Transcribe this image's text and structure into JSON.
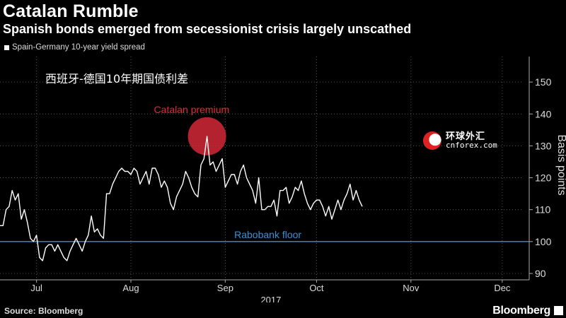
{
  "header": {
    "title": "Catalan Rumble",
    "subtitle": "Spanish bonds emerged from secessionist crisis largely unscathed"
  },
  "legend": {
    "label": "Spain-Germany 10-year yield spread"
  },
  "overlay_text": "西班牙-德国10年期国债利差",
  "watermark": {
    "cn": "环球外汇",
    "en": "cnforex.com"
  },
  "footer": {
    "source": "Source: Bloomberg",
    "brand": "Bloomberg"
  },
  "colors": {
    "background": "#000000",
    "line": "#ffffff",
    "floor": "#3d8fd6",
    "annotation": "#e02b3a"
  },
  "chart_data": {
    "type": "line",
    "title": "Catalan Rumble",
    "xlabel": "2017",
    "ylabel": "Basis points",
    "ylim": [
      88,
      158
    ],
    "yticks": [
      90,
      100,
      110,
      120,
      130,
      140,
      150
    ],
    "xticks": [
      {
        "label": "Jul",
        "x": 12
      },
      {
        "label": "Aug",
        "x": 43
      },
      {
        "label": "Sep",
        "x": 74
      },
      {
        "label": "Oct",
        "x": 104
      },
      {
        "label": "Nov",
        "x": 135
      },
      {
        "label": "Dec",
        "x": 165
      }
    ],
    "x_range": [
      0,
      172
    ],
    "series": [
      {
        "name": "Spain-Germany 10-year yield spread",
        "points": [
          [
            0,
            105
          ],
          [
            1,
            105
          ],
          [
            2,
            110
          ],
          [
            3,
            111
          ],
          [
            4,
            116
          ],
          [
            5,
            113
          ],
          [
            6,
            115
          ],
          [
            7,
            107
          ],
          [
            8,
            110
          ],
          [
            9,
            106
          ],
          [
            10,
            101
          ],
          [
            11,
            100
          ],
          [
            12,
            102
          ],
          [
            13,
            95
          ],
          [
            14,
            94
          ],
          [
            15,
            98
          ],
          [
            16,
            99
          ],
          [
            17,
            99
          ],
          [
            18,
            97
          ],
          [
            19,
            99
          ],
          [
            20,
            97
          ],
          [
            21,
            95
          ],
          [
            22,
            94
          ],
          [
            23,
            97
          ],
          [
            24,
            99
          ],
          [
            25,
            101
          ],
          [
            26,
            99
          ],
          [
            27,
            97
          ],
          [
            28,
            100
          ],
          [
            29,
            102
          ],
          [
            30,
            108
          ],
          [
            31,
            103
          ],
          [
            32,
            104
          ],
          [
            33,
            102
          ],
          [
            34,
            101
          ],
          [
            35,
            115
          ],
          [
            36,
            115
          ],
          [
            37,
            118
          ],
          [
            38,
            120
          ],
          [
            39,
            122
          ],
          [
            40,
            123
          ],
          [
            41,
            122
          ],
          [
            42,
            122
          ],
          [
            43,
            121
          ],
          [
            44,
            123
          ],
          [
            45,
            122
          ],
          [
            46,
            118
          ],
          [
            47,
            120
          ],
          [
            48,
            122
          ],
          [
            49,
            118
          ],
          [
            50,
            123
          ],
          [
            51,
            123
          ],
          [
            52,
            121
          ],
          [
            53,
            117
          ],
          [
            54,
            119
          ],
          [
            55,
            117
          ],
          [
            56,
            112
          ],
          [
            57,
            110
          ],
          [
            58,
            114
          ],
          [
            59,
            116
          ],
          [
            60,
            118
          ],
          [
            61,
            122
          ],
          [
            62,
            120
          ],
          [
            63,
            117
          ],
          [
            64,
            115
          ],
          [
            65,
            114
          ],
          [
            66,
            124
          ],
          [
            67,
            126
          ],
          [
            68,
            133
          ],
          [
            69,
            124
          ],
          [
            70,
            125
          ],
          [
            71,
            122
          ],
          [
            72,
            124
          ],
          [
            73,
            126
          ],
          [
            74,
            117
          ],
          [
            75,
            119
          ],
          [
            76,
            121
          ],
          [
            77,
            121
          ],
          [
            78,
            118
          ],
          [
            79,
            122
          ],
          [
            80,
            124
          ],
          [
            81,
            120
          ],
          [
            82,
            118
          ],
          [
            83,
            116
          ],
          [
            84,
            112
          ],
          [
            85,
            120
          ],
          [
            86,
            110
          ],
          [
            87,
            110
          ],
          [
            88,
            111
          ],
          [
            89,
            111
          ],
          [
            90,
            113
          ],
          [
            91,
            108
          ],
          [
            92,
            116
          ],
          [
            93,
            116
          ],
          [
            94,
            117
          ],
          [
            95,
            112
          ],
          [
            96,
            114
          ],
          [
            97,
            117
          ],
          [
            98,
            116
          ],
          [
            99,
            119
          ],
          [
            100,
            115
          ],
          [
            101,
            112
          ],
          [
            102,
            110
          ],
          [
            103,
            112
          ],
          [
            104,
            113
          ],
          [
            105,
            113
          ],
          [
            106,
            111
          ],
          [
            107,
            108
          ],
          [
            108,
            111
          ],
          [
            109,
            107
          ],
          [
            110,
            110
          ],
          [
            111,
            113
          ],
          [
            112,
            110
          ],
          [
            113,
            113
          ],
          [
            114,
            115
          ],
          [
            115,
            118
          ],
          [
            116,
            113
          ],
          [
            117,
            116
          ],
          [
            118,
            113
          ],
          [
            119,
            111
          ]
        ]
      }
    ],
    "reference_line": {
      "label": "Rabobank floor",
      "value": 100
    },
    "annotation": {
      "label": "Catalan premium",
      "x": 68,
      "y": 133
    }
  }
}
